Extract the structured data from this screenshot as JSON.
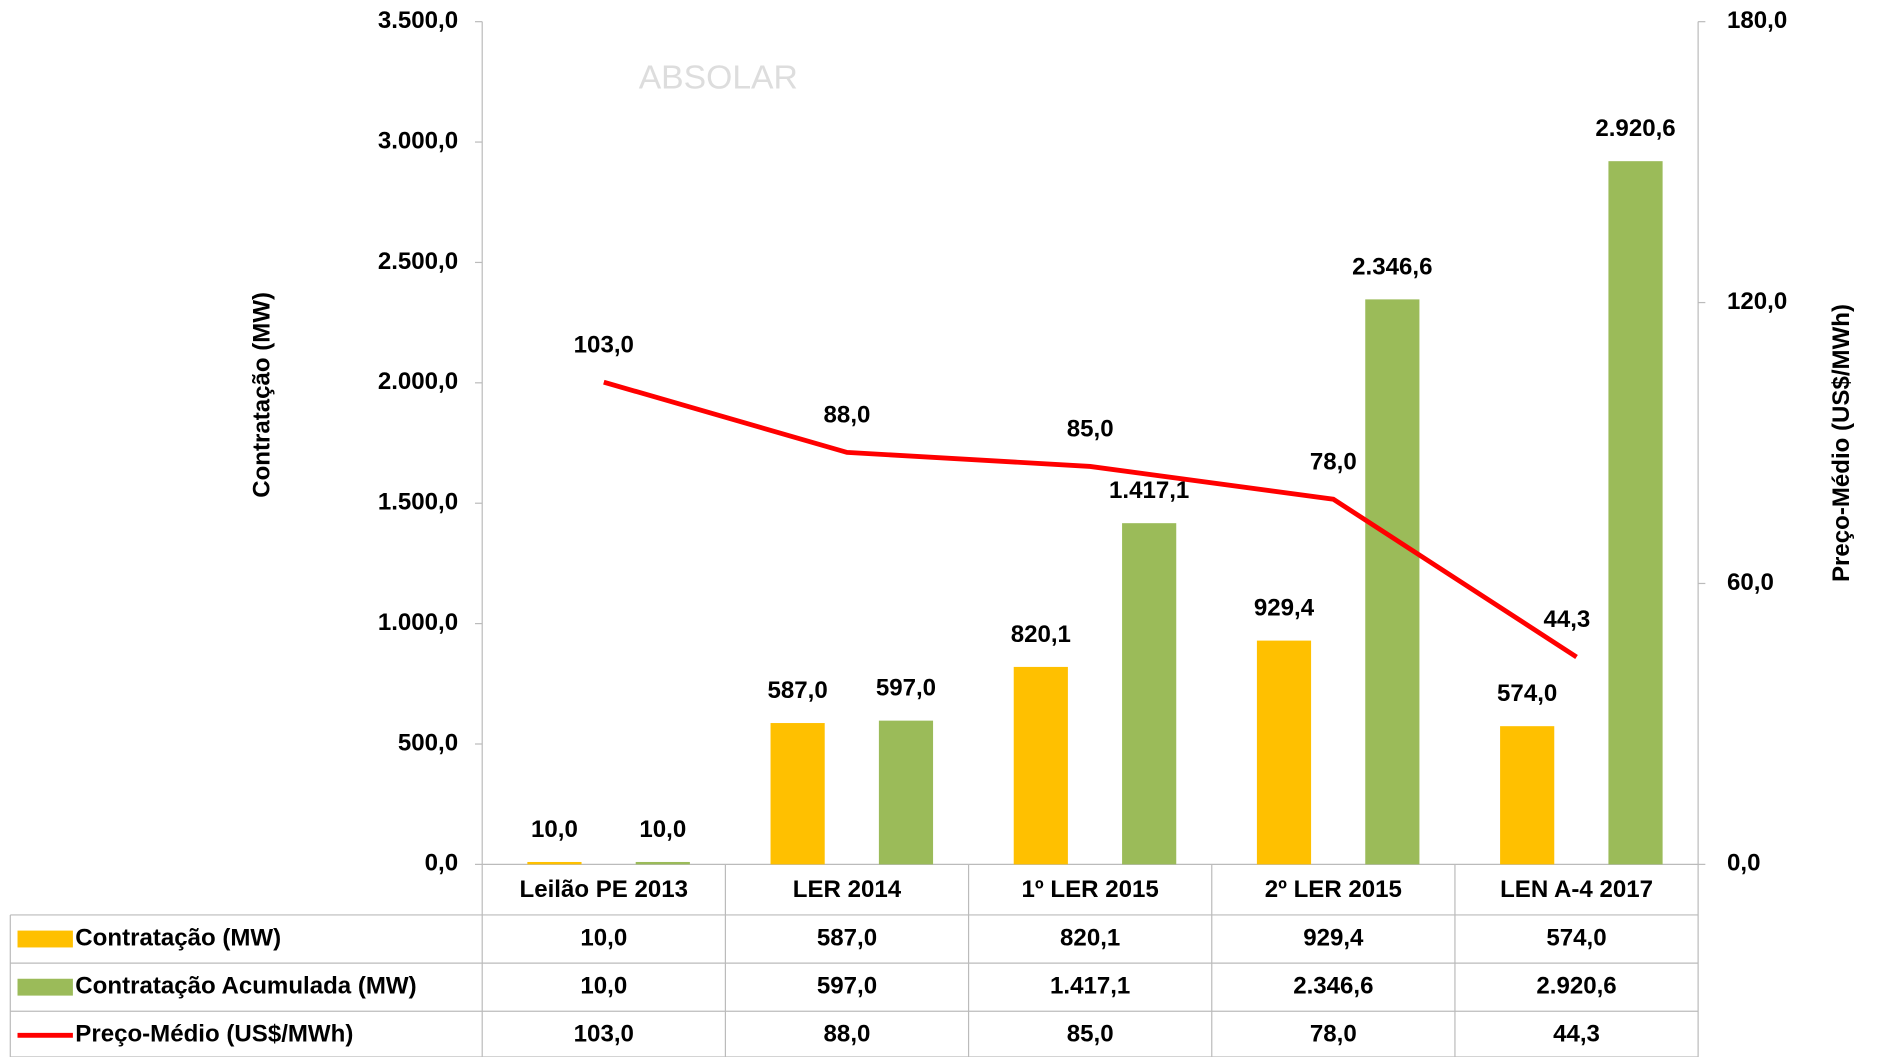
{
  "chart_data": {
    "type": "bar",
    "watermark": "ABSOLAR",
    "categories": [
      "Leilão PE 2013",
      "LER 2014",
      "1º LER 2015",
      "2º LER 2015",
      "LEN A-4 2017"
    ],
    "ylabel": "Contratação (MW)",
    "y2label": "Preço-Médio (US$/MWh)",
    "ylim": [
      0,
      3500
    ],
    "yticks": [
      {
        "value": 0,
        "label": "0,0"
      },
      {
        "value": 500,
        "label": "500,0"
      },
      {
        "value": 1000,
        "label": "1.000,0"
      },
      {
        "value": 1500,
        "label": "1.500,0"
      },
      {
        "value": 2000,
        "label": "2.000,0"
      },
      {
        "value": 2500,
        "label": "2.500,0"
      },
      {
        "value": 3000,
        "label": "3.000,0"
      },
      {
        "value": 3500,
        "label": "3.500,0"
      }
    ],
    "y2lim": [
      0,
      180
    ],
    "y2ticks": [
      {
        "value": 0,
        "label": "0,0"
      },
      {
        "value": 60,
        "label": "60,0"
      },
      {
        "value": 120,
        "label": "120,0"
      },
      {
        "value": 180,
        "label": "180,0"
      }
    ],
    "series": [
      {
        "name": "Contratação (MW)",
        "color": "#ffc000",
        "type": "bar",
        "values": [
          10,
          587,
          820.1,
          929.4,
          574
        ],
        "value_labels": [
          "10,0",
          "587,0",
          "820,1",
          "929,4",
          "574,0"
        ]
      },
      {
        "name": "Contratação Acumulada (MW)",
        "color": "#9bbb59",
        "type": "bar",
        "values": [
          10,
          597,
          1417.1,
          2346.6,
          2920.6
        ],
        "value_labels": [
          "10,0",
          "597,0",
          "1.417,1",
          "2.346,6",
          "2.920,6"
        ]
      },
      {
        "name": "Preço-Médio (US$/MWh)",
        "color": "#ff0000",
        "type": "line",
        "axis": "y2",
        "values": [
          103,
          88,
          85,
          78,
          44.3
        ],
        "value_labels": [
          "103,0",
          "88,0",
          "85,0",
          "78,0",
          "44,3"
        ]
      }
    ]
  }
}
